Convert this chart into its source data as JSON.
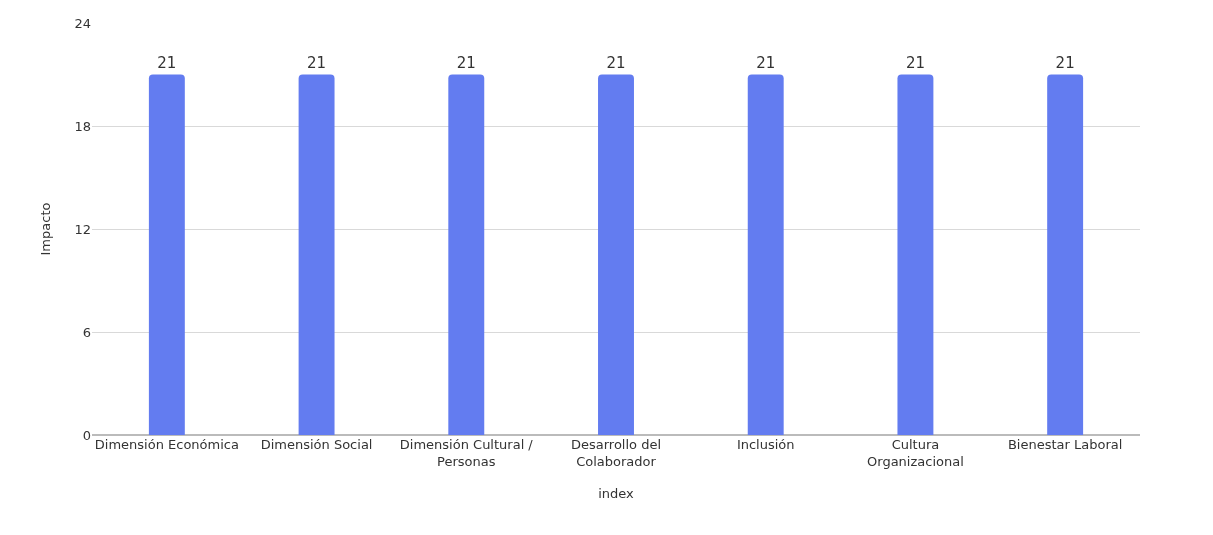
{
  "chart_data": {
    "type": "bar",
    "xlabel": "index",
    "ylabel": "Impacto",
    "categories": [
      "Dimensión Económica",
      "Dimensión Social",
      "Dimensión Cultural / Personas",
      "Desarrollo del Colaborador",
      "Inclusión",
      "Cultura Organizacional",
      "Bienestar Laboral"
    ],
    "values": [
      21,
      21,
      21,
      21,
      21,
      21,
      21
    ],
    "color": "#637cf0",
    "ylim": [
      0,
      24
    ],
    "yticks": [
      0,
      6,
      12,
      18,
      24
    ],
    "grid": "y",
    "data_labels": true
  }
}
